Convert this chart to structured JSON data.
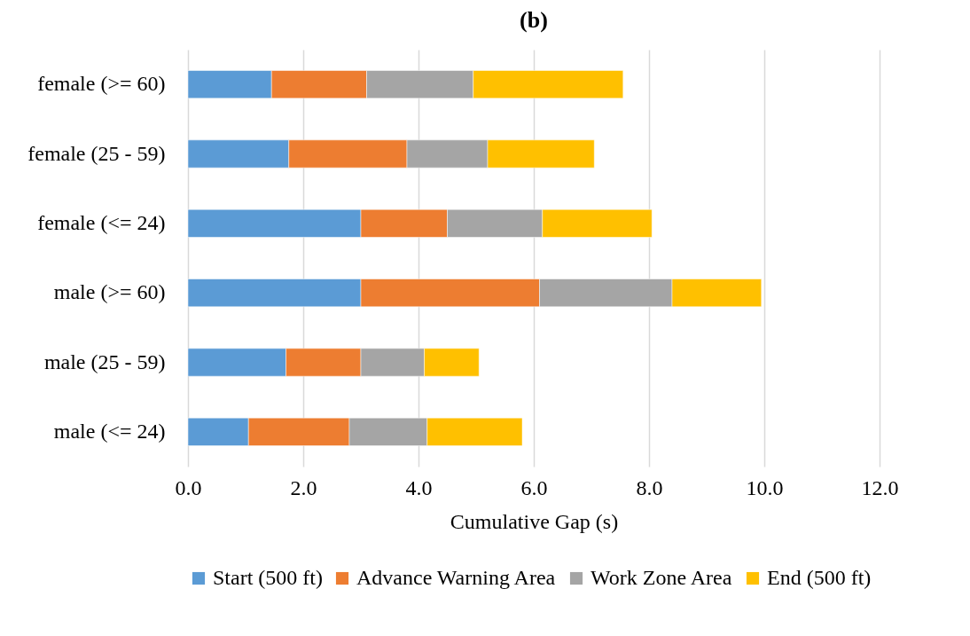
{
  "chart_data": {
    "type": "bar",
    "orientation": "horizontal",
    "stacked": true,
    "title": "(b)",
    "xlabel": "Cumulative Gap (s)",
    "categories": [
      "female (>= 60)",
      "female (25 - 59)",
      "female (<= 24)",
      "male (>= 60)",
      "male (25 - 59)",
      "male (<= 24)"
    ],
    "series": [
      {
        "name": "Start (500 ft)",
        "color": "#5b9bd5",
        "values": [
          1.45,
          1.75,
          3.0,
          3.0,
          1.7,
          1.05
        ]
      },
      {
        "name": "Advance Warning Area",
        "color": "#ed7d31",
        "values": [
          1.65,
          2.05,
          1.5,
          3.1,
          1.3,
          1.75
        ]
      },
      {
        "name": "Work Zone Area",
        "color": "#a5a5a5",
        "values": [
          1.85,
          1.4,
          1.65,
          2.3,
          1.1,
          1.35
        ]
      },
      {
        "name": "End (500 ft)",
        "color": "#ffc000",
        "values": [
          2.6,
          1.85,
          1.9,
          1.55,
          0.95,
          1.65
        ]
      }
    ],
    "xlim": [
      0,
      12
    ],
    "xticks": [
      {
        "value": 0,
        "label": "0.0"
      },
      {
        "value": 2,
        "label": "2.0"
      },
      {
        "value": 4,
        "label": "4.0"
      },
      {
        "value": 6,
        "label": "6.0"
      },
      {
        "value": 8,
        "label": "8.0"
      },
      {
        "value": 10,
        "label": "10.0"
      },
      {
        "value": 12,
        "label": "12.0"
      }
    ],
    "grid": "x",
    "legend": "bottom"
  }
}
